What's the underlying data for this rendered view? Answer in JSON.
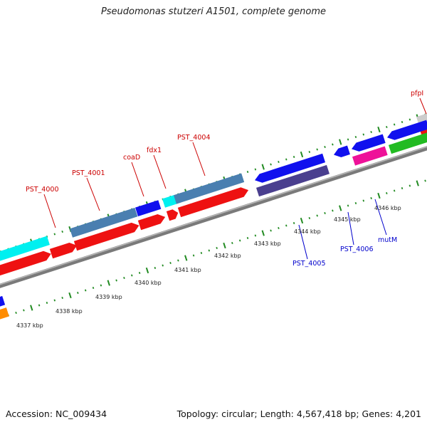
{
  "title": "Pseudomonas stutzeri A1501, complete genome",
  "footer": {
    "accession": "Accession: NC_009434",
    "summary": "Topology: circular; Length: 4,567,418 bp; Genes: 4,201"
  },
  "colors": {
    "forward_label": "#cc0000",
    "reverse_label": "#0000cc",
    "backbone": "#8c8c8c",
    "tick": "#228b22"
  },
  "scale": {
    "unit": "kbp",
    "ticks": [
      "4337 kbp",
      "4338 kbp",
      "4339 kbp",
      "4340 kbp",
      "4341 kbp",
      "4342 kbp",
      "4343 kbp",
      "4344 kbp",
      "4345 kbp",
      "4346 kbp"
    ]
  },
  "gene_labels": {
    "forward": [
      "PST_4000",
      "PST_4001",
      "coaD",
      "fdx1",
      "PST_4004",
      "pfpI"
    ],
    "reverse": [
      "PST_4005",
      "PST_4006",
      "mutM"
    ]
  }
}
